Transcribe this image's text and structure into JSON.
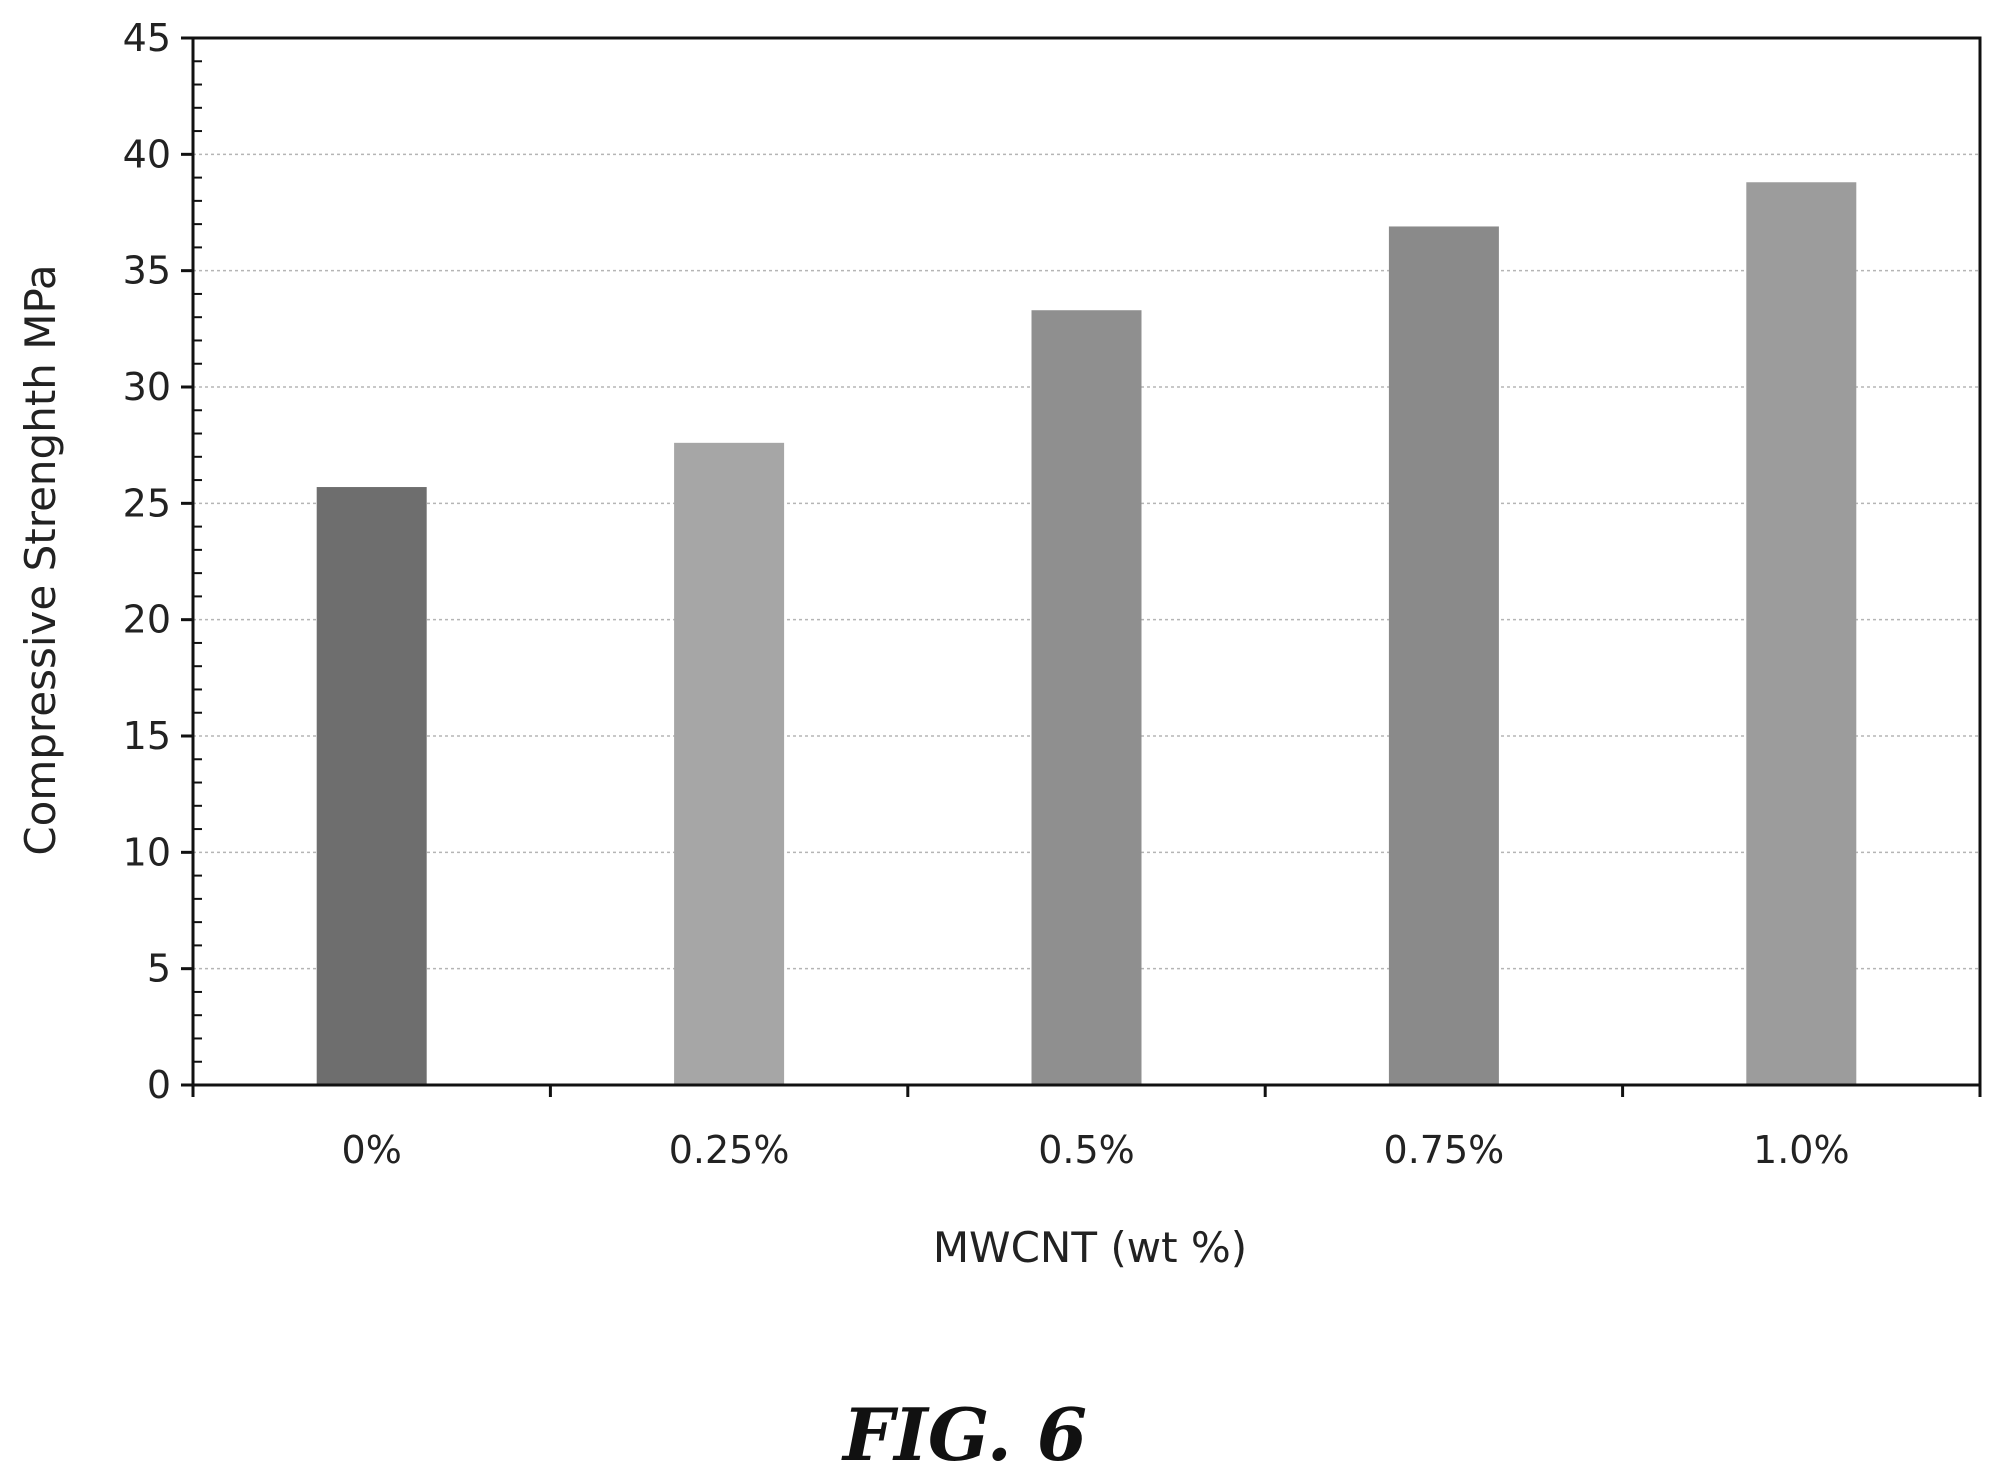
{
  "chart_data": {
    "type": "bar",
    "categories": [
      "0%",
      "0.25%",
      "0.5%",
      "0.75%",
      "1.0%"
    ],
    "values": [
      25.7,
      27.6,
      33.3,
      36.9,
      38.8
    ],
    "xlabel": "MWCNT (wt %)",
    "ylabel": "Compressive Strenghth MPa",
    "ylim": [
      0,
      45
    ],
    "yticks": [
      0,
      5,
      10,
      15,
      20,
      25,
      30,
      35,
      40,
      45
    ],
    "grid": true,
    "bar_colors": [
      "#6e6e6e",
      "#a6a6a6",
      "#8f8f8f",
      "#8a8a8a",
      "#9c9c9c"
    ]
  },
  "figure": {
    "caption": "FIG. 6"
  }
}
